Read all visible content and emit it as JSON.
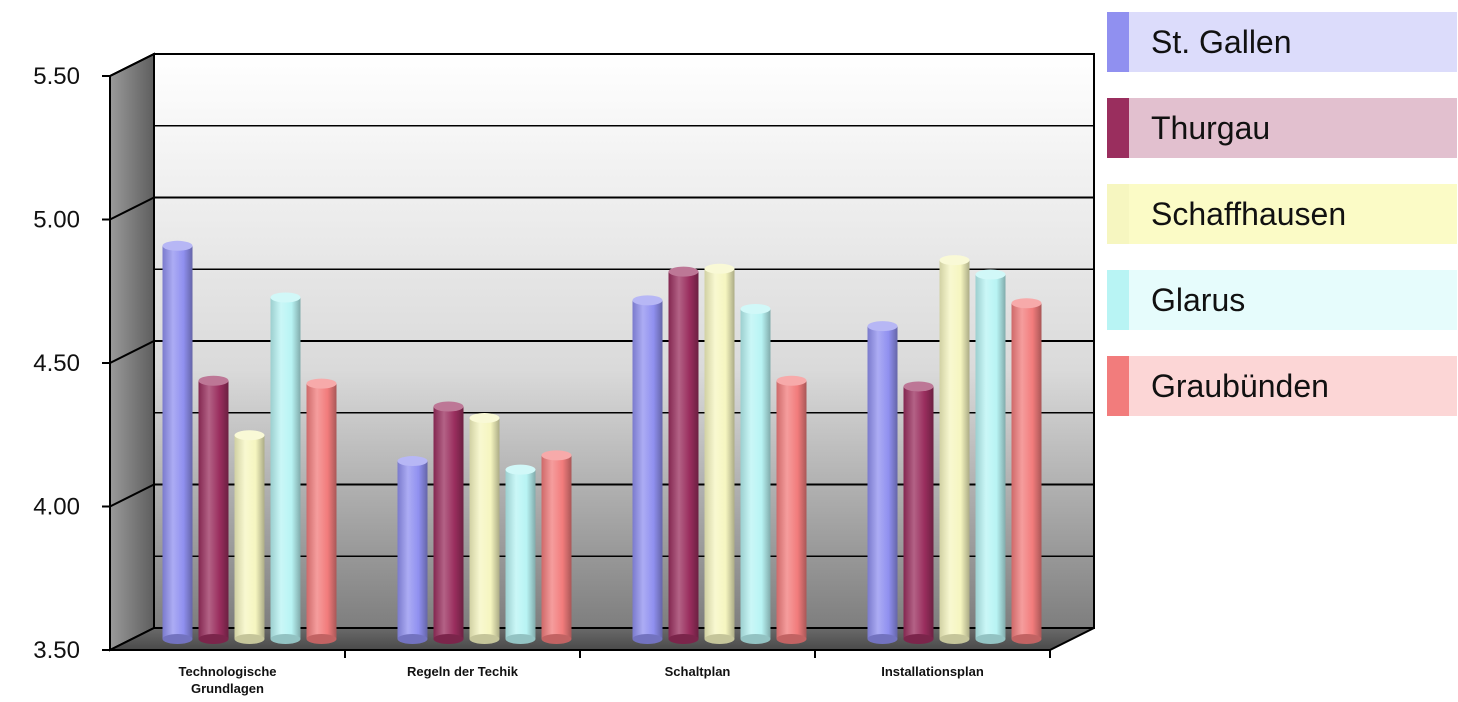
{
  "chart_data": {
    "type": "bar",
    "title": "",
    "xlabel": "",
    "ylabel": "",
    "ylim": [
      3.5,
      5.5
    ],
    "yticks": [
      "5.50",
      "5.00",
      "4.50",
      "4.00",
      "3.50"
    ],
    "grid": true,
    "legend_position": "right",
    "categories": [
      [
        "Technologische",
        "Grundlagen"
      ],
      [
        "Regeln der Techik"
      ],
      [
        "Schaltplan"
      ],
      [
        "Installationsplan"
      ]
    ],
    "series": [
      {
        "name": "St. Gallen",
        "color": "#9090f0",
        "legend_bg": "#dcdcfb",
        "values": [
          4.87,
          4.12,
          4.68,
          4.59
        ]
      },
      {
        "name": "Thurgau",
        "color": "#9a2e5e",
        "legend_bg": "#e2c0cf",
        "values": [
          4.4,
          4.31,
          4.78,
          4.38
        ]
      },
      {
        "name": "Schaffhausen",
        "color": "#f6f6c0",
        "legend_bg": "#fbfbc6",
        "values": [
          4.21,
          4.27,
          4.79,
          4.82
        ]
      },
      {
        "name": "Glarus",
        "color": "#b8f4f4",
        "legend_bg": "#e6fcfc",
        "values": [
          4.69,
          4.09,
          4.65,
          4.77
        ]
      },
      {
        "name": "Graubünden",
        "color": "#f27c7c",
        "legend_bg": "#fcd6d6",
        "values": [
          4.39,
          4.14,
          4.4,
          4.67
        ]
      }
    ]
  }
}
